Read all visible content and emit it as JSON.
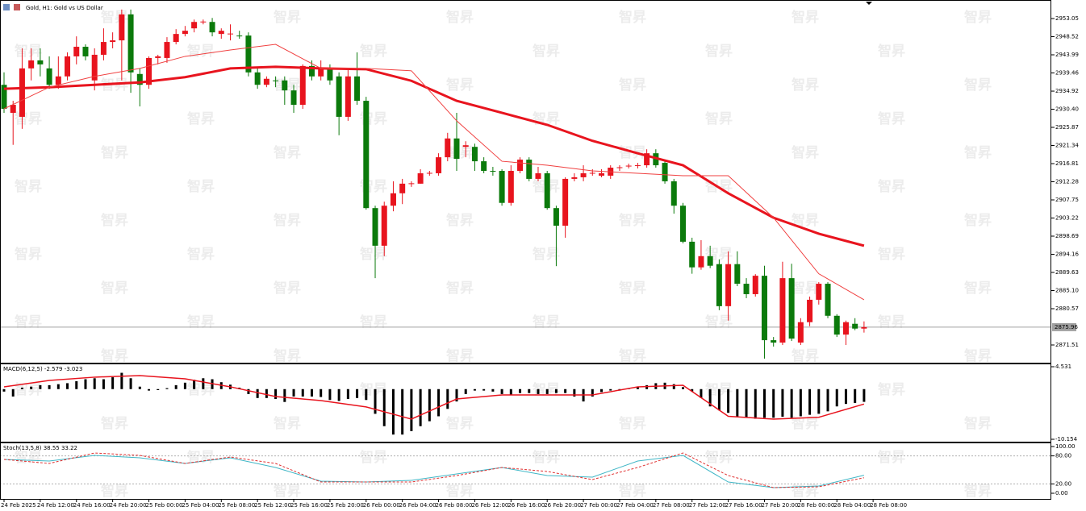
{
  "watermark": "智昇",
  "chart_data": [
    {
      "type": "candlestick",
      "title": "Gold, H1: Gold vs US Dollar",
      "up_color": "#e8141e",
      "down_color": "#0b7a0b",
      "flat_color": "#000000",
      "ylim": [
        2867.08,
        2957.28
      ],
      "yticks": [
        2953.05,
        2948.52,
        2943.99,
        2939.46,
        2934.92,
        {
          "value": 2930.4,
          "label": "2930.40"
        },
        2925.87,
        2921.34,
        2916.81,
        2912.28,
        2907.75,
        2903.22,
        2898.69,
        2894.16,
        2889.63,
        {
          "value": 2885.1,
          "label": "2885.10"
        },
        2880.57,
        2871.51
      ],
      "current_price": 2875.96,
      "time_labels": [
        "24 Feb 2025",
        "24 Feb 12:00",
        "24 Feb 16:00",
        "24 Feb 20:00",
        "25 Feb 00:00",
        "25 Feb 04:00",
        "25 Feb 08:00",
        "25 Feb 12:00",
        "25 Feb 16:00",
        "25 Feb 20:00",
        "26 Feb 00:00",
        "26 Feb 04:00",
        "26 Feb 08:00",
        "26 Feb 12:00",
        "26 Feb 16:00",
        "26 Feb 20:00",
        "27 Feb 00:00",
        "27 Feb 04:00",
        "27 Feb 08:00",
        "27 Feb 12:00",
        "27 Feb 16:00",
        "27 Feb 20:00",
        "28 Feb 00:00",
        "28 Feb 04:00",
        "28 Feb 08:00"
      ],
      "open": [
        2936.5,
        2929.5,
        2928.5,
        2940.6,
        2942.6,
        2940.6,
        2936.5,
        2938.6,
        2943.6,
        2946.0,
        2937.6,
        2944.0,
        2947.2,
        2947.6,
        2954.1,
        2939.2,
        2936.5,
        2943.2,
        2943.2,
        2947.2,
        2949.2,
        2950.6,
        2952.2,
        2952.2,
        2949.2,
        2949.2,
        2948.8,
        2948.8,
        2939.6,
        2936.5,
        2937.6,
        2937.6,
        2935.1,
        2931.5,
        2941.2,
        2938.6,
        2940.6,
        2938.6,
        2928.5,
        2938.6,
        2932.5,
        2905.7,
        2896.3,
        2906.3,
        2909.4,
        2911.8,
        2911.8,
        2914.4,
        2914.4,
        2918.4,
        2923.1,
        2921.0,
        2921.0,
        2917.4,
        2915.0,
        2915.0,
        2907.0,
        2915.0,
        2917.8,
        2913.0,
        2914.4,
        2905.7,
        2901.3,
        2913.0,
        2913.4,
        2914.4,
        2913.8,
        2913.8,
        2915.8,
        2916.2,
        2916.2,
        2916.4,
        2919.4,
        2917.0,
        2912.4,
        2906.3,
        2897.3,
        2890.9,
        2893.7,
        2891.7,
        2881.2,
        2891.7,
        2886.8,
        2884.2,
        2888.8,
        2872.7,
        2872.1,
        2888.2,
        2872.1,
        2877.2,
        2882.8,
        2886.8,
        2878.8,
        2874.1,
        2876.8,
        2875.6
      ],
      "high": [
        2939.6,
        2932.5,
        2945.6,
        2945.6,
        2945.6,
        2943.6,
        2943.6,
        2944.6,
        2948.6,
        2946.6,
        2945.6,
        2950.6,
        2949.6,
        2955.3,
        2955.3,
        2940.6,
        2943.6,
        2944.0,
        2948.4,
        2950.4,
        2951.2,
        2952.8,
        2952.8,
        2953.2,
        2950.6,
        2951.6,
        2950.0,
        2949.6,
        2940.6,
        2938.6,
        2938.6,
        2938.6,
        2936.5,
        2941.6,
        2942.6,
        2942.6,
        2941.6,
        2939.6,
        2940.6,
        2944.6,
        2933.5,
        2906.3,
        2907.3,
        2912.4,
        2913.0,
        2912.4,
        2915.4,
        2915.0,
        2919.4,
        2924.5,
        2929.5,
        2922.4,
        2921.8,
        2918.4,
        2916.0,
        2915.4,
        2916.4,
        2918.4,
        2918.4,
        2916.0,
        2915.0,
        2906.3,
        2913.4,
        2914.4,
        2916.4,
        2915.4,
        2915.4,
        2916.4,
        2916.4,
        2916.8,
        2917.0,
        2920.4,
        2920.4,
        2917.8,
        2913.0,
        2907.0,
        2898.3,
        2897.7,
        2896.3,
        2892.9,
        2894.9,
        2894.9,
        2888.2,
        2889.2,
        2891.3,
        2873.5,
        2892.3,
        2891.8,
        2878.2,
        2883.6,
        2887.2,
        2887.2,
        2879.2,
        2877.6,
        2878.2,
        2877.4
      ],
      "low": [
        2929.5,
        2921.5,
        2925.5,
        2937.6,
        2938.6,
        2935.5,
        2935.5,
        2937.6,
        2941.6,
        2942.6,
        2935.1,
        2942.6,
        2945.6,
        2937.6,
        2934.5,
        2931.1,
        2935.5,
        2941.6,
        2942.0,
        2946.6,
        2948.6,
        2949.6,
        2951.6,
        2948.6,
        2948.0,
        2947.6,
        2948.0,
        2938.6,
        2935.5,
        2935.9,
        2935.9,
        2931.5,
        2929.5,
        2930.5,
        2937.6,
        2937.6,
        2936.5,
        2923.9,
        2927.5,
        2931.5,
        2905.3,
        2888.2,
        2893.7,
        2904.9,
        2906.7,
        2911.0,
        2911.8,
        2913.8,
        2913.8,
        2917.4,
        2915.0,
        2918.4,
        2915.0,
        2914.4,
        2913.8,
        2906.3,
        2906.3,
        2914.4,
        2912.4,
        2912.4,
        2905.3,
        2891.2,
        2898.3,
        2912.4,
        2912.4,
        2913.8,
        2913.4,
        2913.0,
        2915.0,
        2915.6,
        2915.6,
        2915.8,
        2915.8,
        2911.8,
        2904.3,
        2896.9,
        2889.3,
        2890.3,
        2890.7,
        2880.2,
        2877.6,
        2886.2,
        2883.2,
        2883.6,
        2868.1,
        2871.1,
        2871.5,
        2872.5,
        2871.5,
        2876.2,
        2881.6,
        2878.2,
        2873.5,
        2871.5,
        2875.2,
        2874.6
      ],
      "close": [
        2930.5,
        2931.5,
        2940.6,
        2942.6,
        2941.6,
        2936.5,
        2938.6,
        2943.6,
        2946.0,
        2943.6,
        2944.0,
        2947.2,
        2947.6,
        2954.1,
        2939.6,
        2936.5,
        2943.2,
        2943.6,
        2947.2,
        2949.2,
        2950.0,
        2952.2,
        2952.3,
        2949.6,
        2950.0,
        2949.3,
        2948.7,
        2939.6,
        2936.5,
        2938.0,
        2937.5,
        2935.1,
        2931.5,
        2941.2,
        2938.6,
        2940.6,
        2937.6,
        2928.5,
        2938.6,
        2932.5,
        2905.7,
        2896.3,
        2906.3,
        2909.4,
        2911.8,
        2911.9,
        2914.4,
        2914.5,
        2918.4,
        2923.1,
        2918.0,
        2921.4,
        2917.4,
        2915.0,
        2914.9,
        2907.0,
        2915.0,
        2917.8,
        2913.0,
        2914.4,
        2905.7,
        2901.3,
        2913.0,
        2913.4,
        2914.4,
        2914.5,
        2914.4,
        2915.8,
        2915.9,
        2916.3,
        2916.4,
        2919.4,
        2916.4,
        2912.4,
        2906.3,
        2897.3,
        2890.9,
        2893.7,
        2891.3,
        2881.2,
        2891.7,
        2886.8,
        2884.2,
        2888.8,
        2872.7,
        2872.1,
        2888.2,
        2873.1,
        2877.2,
        2882.8,
        2886.8,
        2878.8,
        2874.1,
        2877.2,
        2875.6,
        2875.96
      ],
      "lines": [
        {
          "color": "#e8141e",
          "values": [
            2935.5,
            2935.9,
            2936.5,
            2937.1,
            2938.4,
            2940.6,
            2941.0,
            2940.6,
            2940.4,
            2937.5,
            2932.5,
            2929.5,
            2926.5,
            2922.5,
            2919.4,
            2916.4,
            2909.4,
            2903.3,
            2899.3,
            2896.3
          ]
        },
        {
          "color": "#f04040",
          "values": [
            2930.5,
            2935.9,
            2938.6,
            2940.6,
            2943.6,
            2945.2,
            2946.6,
            2940.6,
            2940.6,
            2940.0,
            2927.5,
            2917.4,
            2916.4,
            2915.0,
            2914.4,
            2913.8,
            2913.8,
            2903.3,
            2889.3,
            2882.8
          ]
        }
      ]
    },
    {
      "type": "macd",
      "title": "MACD(6,12,5) -2.579 -3.023",
      "bar_color": "#000000",
      "ylim": [
        -10.64,
        5.02
      ],
      "yticks": [
        4.531,
        -10.154
      ],
      "values": [
        -0.5,
        -1.5,
        0.3,
        0.5,
        0.8,
        0.8,
        1.0,
        1.2,
        1.6,
        2.0,
        2.2,
        2.0,
        2.4,
        3.3,
        2.2,
        0.5,
        -0.3,
        -0.2,
        0.2,
        0.8,
        1.3,
        1.9,
        2.2,
        2.0,
        1.4,
        0.9,
        0.3,
        -1.0,
        -1.8,
        -1.8,
        -2.0,
        -2.6,
        -1.5,
        -1.5,
        -1.5,
        -1.6,
        -2.2,
        -2.4,
        -2.0,
        -1.8,
        -2.2,
        -5.0,
        -7.5,
        -9.2,
        -9.2,
        -8.5,
        -7.5,
        -6.5,
        -5.5,
        -4.0,
        -2.5,
        -1.0,
        -0.3,
        -0.3,
        -0.5,
        -1.0,
        -1.2,
        -0.8,
        -0.8,
        -1.0,
        -1.0,
        -0.8,
        -0.8,
        -1.5,
        -2.5,
        -1.5,
        -0.6,
        -0.3,
        -0.3,
        0.2,
        0.5,
        0.8,
        1.2,
        1.3,
        1.0,
        0.4,
        -0.5,
        -1.8,
        -3.5,
        -4.3,
        -4.8,
        -5.5,
        -5.8,
        -6.0,
        -5.8,
        -5.8,
        -5.6,
        -5.8,
        -5.5,
        -5.2,
        -5.0,
        -4.5,
        -3.5,
        -3.0,
        -2.8,
        -2.579
      ],
      "signal": {
        "color": "#e8141e",
        "values": [
          0.46,
          1.76,
          2.42,
          2.74,
          2.09,
          0.46,
          -1.5,
          -2.32,
          -3.6,
          -6.07,
          -2.0,
          -1.18,
          -1.18,
          -1.18,
          0.46,
          0.78,
          -5.5,
          -6.07,
          -5.7,
          -3.023
        ]
      }
    },
    {
      "type": "stochastic",
      "title": "Stoch(13,5,8) 38.55 33.22",
      "ylim": [
        -13.8,
        106.9
      ],
      "yticks": [
        {
          "value": 100,
          "label": "100.00"
        },
        {
          "value": 80,
          "label": "80.00"
        },
        {
          "value": 20,
          "label": "20.00"
        },
        {
          "value": 0,
          "label": "0.00"
        }
      ],
      "levels": [
        80,
        20
      ],
      "series": [
        {
          "color": "#3fb6c6",
          "dashed": false,
          "values": [
            72.4,
            69.0,
            81.0,
            75.9,
            63.8,
            75.9,
            55.2,
            25.9,
            24.1,
            27.6,
            41.4,
            55.2,
            37.9,
            34.5,
            69.0,
            81.0,
            24.1,
            12.1,
            15.5,
            38.55
          ]
        },
        {
          "color": "#e03030",
          "dashed": true,
          "values": [
            72.4,
            63.8,
            86.2,
            81.0,
            63.8,
            77.6,
            63.8,
            24.1,
            24.1,
            24.1,
            37.9,
            55.2,
            46.6,
            29.3,
            55.2,
            86.2,
            37.9,
            12.1,
            13.8,
            33.22
          ]
        }
      ]
    }
  ]
}
